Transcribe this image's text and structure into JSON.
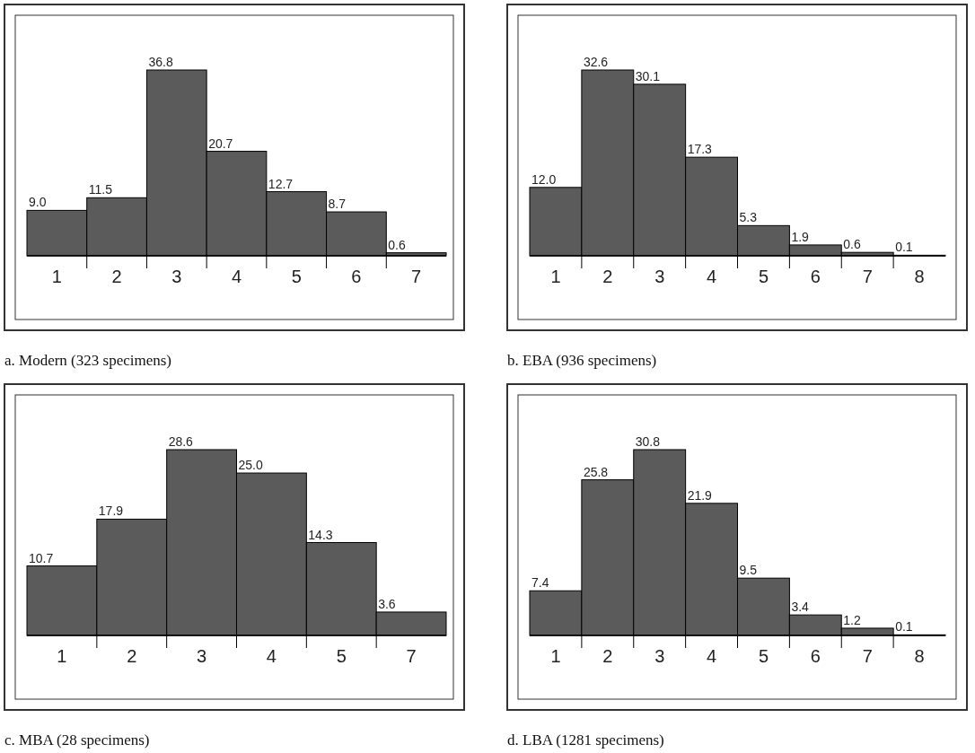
{
  "chart_data": [
    {
      "type": "bar",
      "title": "a. Modern (323 specimens)",
      "categories": [
        "1",
        "2",
        "3",
        "4",
        "5",
        "6",
        "7"
      ],
      "values": [
        9.0,
        11.5,
        36.8,
        20.7,
        12.7,
        8.7,
        0.6
      ],
      "value_labels": [
        "9.0",
        "11.5",
        "36.8",
        "20.7",
        "12.7",
        "8.7",
        "0.6"
      ],
      "color": "#5b5b5b"
    },
    {
      "type": "bar",
      "title": "b. EBA (936 specimens)",
      "categories": [
        "1",
        "2",
        "3",
        "4",
        "5",
        "6",
        "7",
        "8"
      ],
      "values": [
        12.0,
        32.6,
        30.1,
        17.3,
        5.3,
        1.9,
        0.6,
        0.1
      ],
      "value_labels": [
        "12.0",
        "32.6",
        "30.1",
        "17.3",
        "5.3",
        "1.9",
        "0.6",
        "0.1"
      ],
      "color": "#5b5b5b"
    },
    {
      "type": "bar",
      "title": "c. MBA (28 specimens)",
      "categories": [
        "1",
        "2",
        "3",
        "4",
        "5",
        "7"
      ],
      "values": [
        10.7,
        17.9,
        28.6,
        25.0,
        14.3,
        3.6
      ],
      "value_labels": [
        "10.7",
        "17.9",
        "28.6",
        "25.0",
        "14.3",
        "3.6"
      ],
      "color": "#5b5b5b"
    },
    {
      "type": "bar",
      "title": "d. LBA (1281 specimens)",
      "categories": [
        "1",
        "2",
        "3",
        "4",
        "5",
        "6",
        "7",
        "8"
      ],
      "values": [
        7.4,
        25.8,
        30.8,
        21.9,
        9.5,
        3.4,
        1.2,
        0.1
      ],
      "value_labels": [
        "7.4",
        "25.8",
        "30.8",
        "21.9",
        "9.5",
        "3.4",
        "1.2",
        "0.1"
      ],
      "color": "#5b5b5b"
    }
  ]
}
